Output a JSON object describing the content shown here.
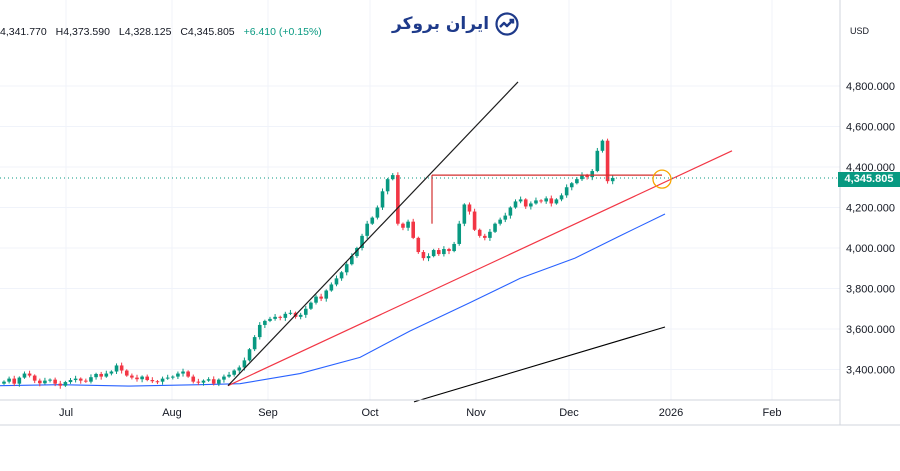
{
  "header": {
    "open": "4,341.770",
    "high": "H4,373.590",
    "low": "L4,328.125",
    "close": "C4,345.805",
    "change": "+6.410 (+0.15%)"
  },
  "brand": {
    "name": "ایران بروکر"
  },
  "currency": "USD",
  "last_price": "4,345.805",
  "colors": {
    "up": "#089981",
    "down": "#f23645",
    "ma_fast": "#2962ff",
    "ma_slow": "#000000",
    "trend_support": "#f23645",
    "trend_steep": "#1e1e1e",
    "resistance": "#d32f2f",
    "price_line": "#089981",
    "circle": "#f7a600"
  },
  "chart_data": {
    "type": "candlestick",
    "title": "",
    "y_axis": {
      "ticks": [
        "3,400.000",
        "3,600.000",
        "3,800.000",
        "4,000.000",
        "4,200.000",
        "4,400.000",
        "4,600.000",
        "4,800.000"
      ],
      "range": [
        3250,
        5000
      ]
    },
    "x_axis": {
      "ticks": [
        "Jul",
        "Aug",
        "Sep",
        "Oct",
        "Nov",
        "Dec",
        "2026",
        "Feb"
      ]
    },
    "price_series": [
      3340,
      3355,
      3330,
      3360,
      3380,
      3370,
      3345,
      3332,
      3345,
      3350,
      3330,
      3320,
      3338,
      3348,
      3355,
      3345,
      3340,
      3362,
      3378,
      3365,
      3380,
      3390,
      3420,
      3395,
      3370,
      3360,
      3352,
      3365,
      3348,
      3342,
      3340,
      3355,
      3360,
      3365,
      3380,
      3390,
      3365,
      3340,
      3335,
      3345,
      3352,
      3330,
      3350,
      3365,
      3374,
      3395,
      3410,
      3445,
      3500,
      3560,
      3620,
      3640,
      3650,
      3660,
      3655,
      3675,
      3680,
      3660,
      3670,
      3700,
      3730,
      3760,
      3750,
      3790,
      3820,
      3850,
      3880,
      3920,
      3960,
      4000,
      4060,
      4120,
      4150,
      4200,
      4280,
      4340,
      4360,
      4120,
      4100,
      4130,
      4050,
      3980,
      3950,
      3960,
      3990,
      3970,
      3995,
      3985,
      4020,
      4120,
      4215,
      4180,
      4090,
      4060,
      4050,
      4080,
      4120,
      4140,
      4160,
      4200,
      4230,
      4240,
      4205,
      4220,
      4235,
      4230,
      4245,
      4220,
      4240,
      4260,
      4300,
      4320,
      4340,
      4360,
      4350,
      4380,
      4480,
      4530,
      4330,
      4346
    ],
    "ma_fast": {
      "start": 3320,
      "end": 4168
    },
    "ma_slow": {
      "start": 3240,
      "end": 3610
    },
    "annotations": [
      "support trendline",
      "steep trendline",
      "horizontal resistance 4,360",
      "circle marker at last price"
    ]
  }
}
